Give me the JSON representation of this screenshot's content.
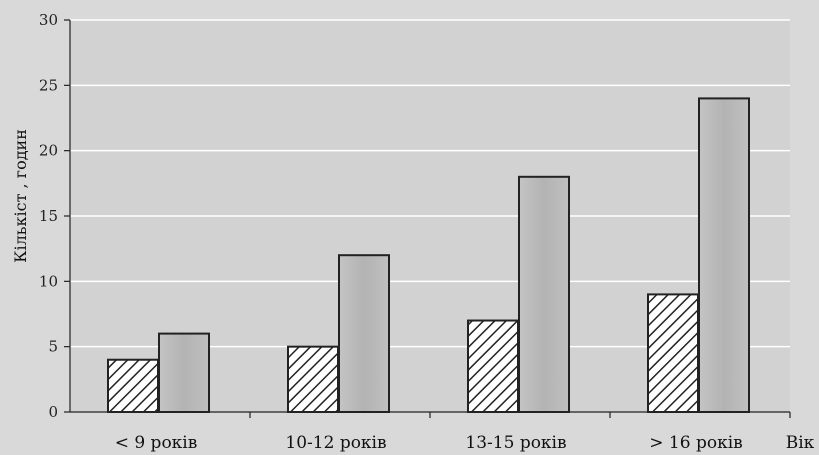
{
  "chart_data": {
    "type": "bar",
    "title": "",
    "xlabel": "Вік",
    "ylabel": "Кількіст , годин",
    "categories": [
      "< 9 років",
      "10-12 років",
      "13-15 років",
      "> 16 років"
    ],
    "series": [
      {
        "values": [
          4,
          5,
          7,
          9
        ],
        "pattern": "diagonal-hatch",
        "color": "#ffffff"
      },
      {
        "values": [
          6,
          12,
          18,
          24
        ],
        "pattern": "solid",
        "color": "#b8b8b8"
      }
    ],
    "ylim": [
      0,
      30
    ],
    "yticks": [
      0,
      5,
      10,
      15,
      20,
      25,
      30
    ],
    "grid": true
  },
  "colors": {
    "background": "#d9d9d9",
    "plot_background": "#d2d2d2",
    "gridline": "#ffffff",
    "axis": "#222222",
    "bar_outline": "#222222",
    "bar_solid": "#b8b8b8"
  }
}
